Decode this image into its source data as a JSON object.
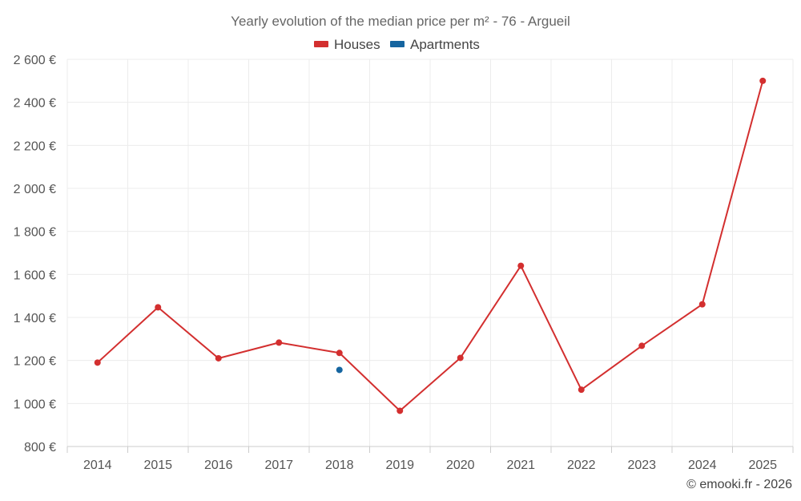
{
  "chart_data": {
    "type": "line",
    "title": "Yearly evolution of the median price per m² - 76 - Argueil",
    "categories": [
      "2014",
      "2015",
      "2016",
      "2017",
      "2018",
      "2019",
      "2020",
      "2021",
      "2022",
      "2023",
      "2024",
      "2025"
    ],
    "series": [
      {
        "name": "Houses",
        "color": "#d32f2f",
        "values": [
          1190,
          1447,
          1210,
          1283,
          1235,
          966,
          1212,
          1640,
          1064,
          1268,
          1461,
          2500
        ]
      },
      {
        "name": "Apartments",
        "color": "#1565a0",
        "values": [
          null,
          null,
          null,
          null,
          1156,
          null,
          null,
          null,
          null,
          null,
          null,
          null
        ]
      }
    ],
    "ylim": [
      800,
      2600
    ],
    "yticks": [
      800,
      1000,
      1200,
      1400,
      1600,
      1800,
      2000,
      2200,
      2400,
      2600
    ],
    "ytick_labels": [
      "800 €",
      "1 000 €",
      "1 200 €",
      "1 400 €",
      "1 600 €",
      "1 800 €",
      "2 000 €",
      "2 200 €",
      "2 400 €",
      "2 600 €"
    ],
    "xlabel": "",
    "ylabel": "",
    "grid": true,
    "legend_position": "top-center"
  },
  "credit": "© emooki.fr - 2026"
}
